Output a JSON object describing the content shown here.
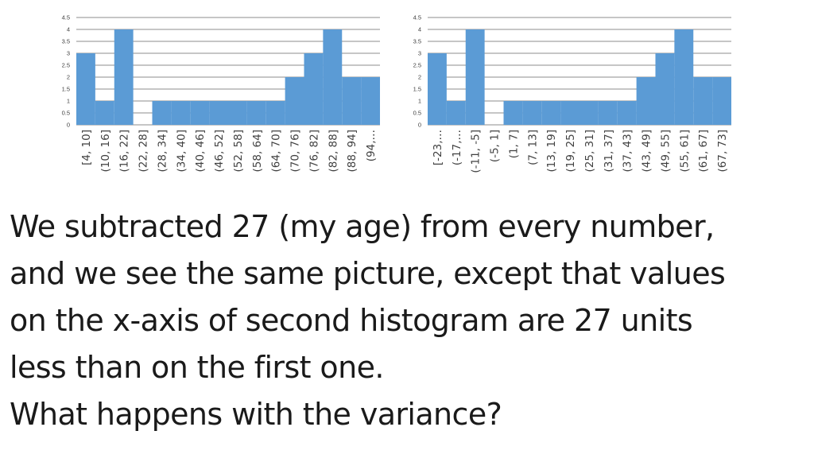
{
  "chart_data": [
    {
      "type": "bar",
      "bar_style": "histogram",
      "categories": [
        "[4, 10]",
        "(10, 16]",
        "(16, 22]",
        "(22, 28]",
        "(28, 34]",
        "(34, 40]",
        "(40, 46]",
        "(46, 52]",
        "(52, 58]",
        "(58, 64]",
        "(64, 70]",
        "(70, 76]",
        "(76, 82]",
        "(82, 88]",
        "(88, 94]",
        "(94,…"
      ],
      "values": [
        3,
        1,
        4,
        0,
        1,
        1,
        1,
        1,
        1,
        1,
        1,
        2,
        3,
        4,
        2,
        2
      ],
      "yticks": [
        "0",
        "0.5",
        "1",
        "1.5",
        "2",
        "2.5",
        "3",
        "3.5",
        "4",
        "4.5"
      ],
      "ylim": [
        0,
        4.5
      ],
      "grid": true,
      "legend": "none",
      "bar_color": "#5b9bd5"
    },
    {
      "type": "bar",
      "bar_style": "histogram",
      "categories": [
        "[-23,…",
        "(-17,…",
        "(-11, -5]",
        "(-5, 1]",
        "(1, 7]",
        "(7, 13]",
        "(13, 19]",
        "(19, 25]",
        "(25, 31]",
        "(31, 37]",
        "(37, 43]",
        "(43, 49]",
        "(49, 55]",
        "(55, 61]",
        "(61, 67]",
        "(67, 73]"
      ],
      "values": [
        3,
        1,
        4,
        0,
        1,
        1,
        1,
        1,
        1,
        1,
        1,
        2,
        3,
        4,
        2,
        2
      ],
      "yticks": [
        "0",
        "0.5",
        "1",
        "1.5",
        "2",
        "2.5",
        "3",
        "3.5",
        "4",
        "4.5"
      ],
      "ylim": [
        0,
        4.5
      ],
      "grid": true,
      "legend": "none",
      "bar_color": "#5b9bd5"
    }
  ],
  "text": {
    "line1": "We subtracted 27 (my age) from every number,",
    "line2": "and we see the same picture, except that values",
    "line3": "on the x-axis of second histogram are 27 units",
    "line4": "less than on the first one.",
    "line5": "What happens with the variance?"
  }
}
